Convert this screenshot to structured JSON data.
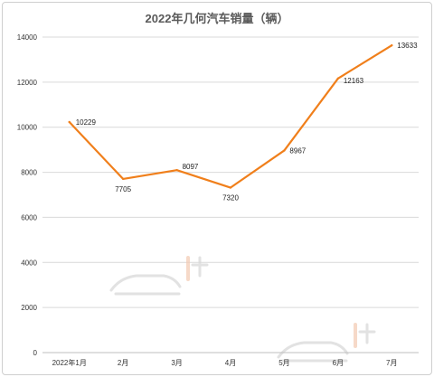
{
  "chart_data": {
    "type": "line",
    "title": "2022年几何汽车销量（辆）",
    "categories": [
      "2022年1月",
      "2月",
      "3月",
      "4月",
      "5月",
      "6月",
      "7月"
    ],
    "series": [
      {
        "values": [
          10229,
          7705,
          8097,
          7320,
          8967,
          12163,
          13633
        ]
      }
    ],
    "data_labels": [
      "10229",
      "7705",
      "8097",
      "7320",
      "8967",
      "12163",
      "13633"
    ],
    "ylim": [
      0,
      14000
    ],
    "yticks": [
      0,
      2000,
      4000,
      6000,
      8000,
      10000,
      12000,
      14000
    ],
    "grid": true,
    "line_color": "#f07f1b",
    "xlabel": "",
    "ylabel": ""
  }
}
